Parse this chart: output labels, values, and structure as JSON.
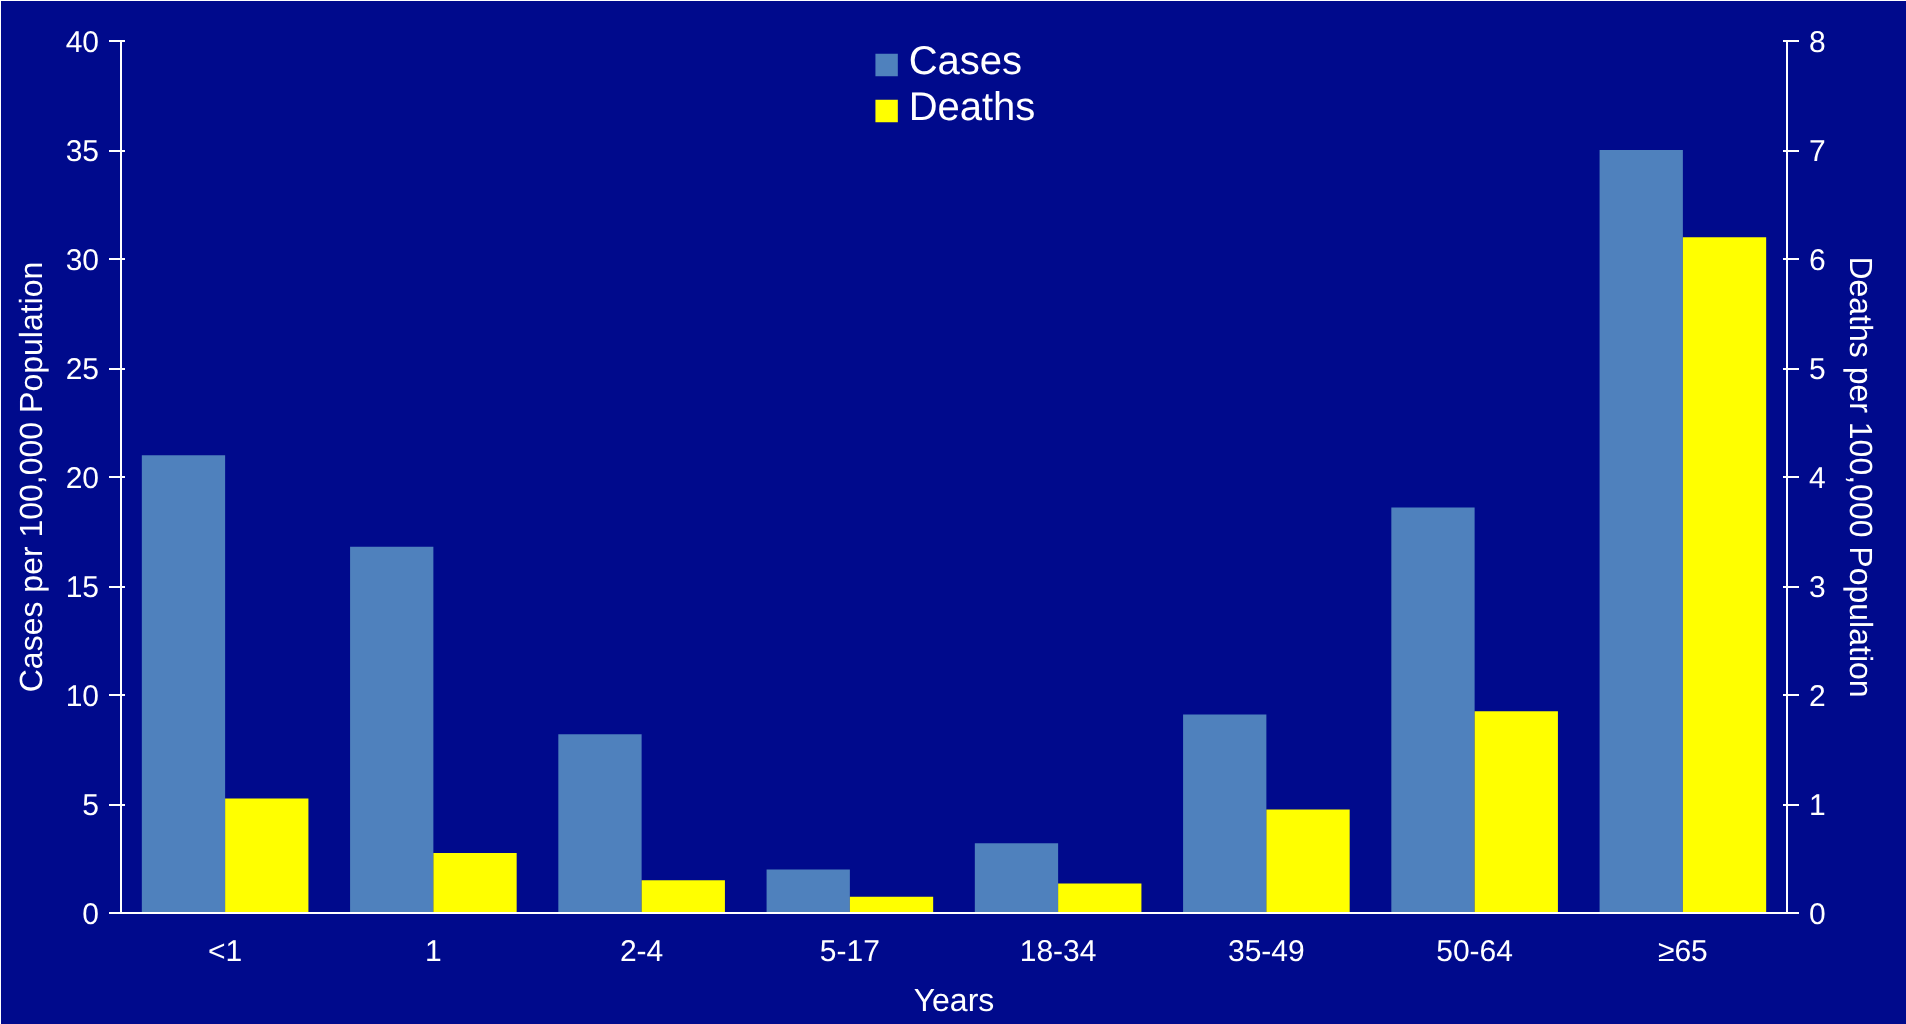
{
  "chart_data": {
    "type": "bar",
    "xlabel": "Years",
    "ylabel": "Cases per 100,000 Population",
    "y2label": "Deaths per 100,000 Population",
    "categories": [
      "<1",
      "1",
      "2-4",
      "5-17",
      "18-34",
      "35-49",
      "50-64",
      "≥65"
    ],
    "series": [
      {
        "name": "Cases",
        "color": "#4f81bd",
        "values": [
          21,
          16.8,
          8.2,
          2.0,
          3.2,
          9.1,
          18.6,
          35.0
        ]
      },
      {
        "name": "Deaths",
        "color": "#ffff00",
        "axis": "y2",
        "values": [
          1.05,
          0.55,
          0.3,
          0.15,
          0.27,
          0.95,
          1.85,
          6.2
        ]
      }
    ],
    "ylim": [
      0,
      40
    ],
    "yticks": [
      0,
      5,
      10,
      15,
      20,
      25,
      30,
      35,
      40
    ],
    "y2lim": [
      0,
      8
    ],
    "y2ticks": [
      0,
      1,
      2,
      3,
      4,
      5,
      6,
      7,
      8
    ],
    "grid": false,
    "legend": "top"
  }
}
